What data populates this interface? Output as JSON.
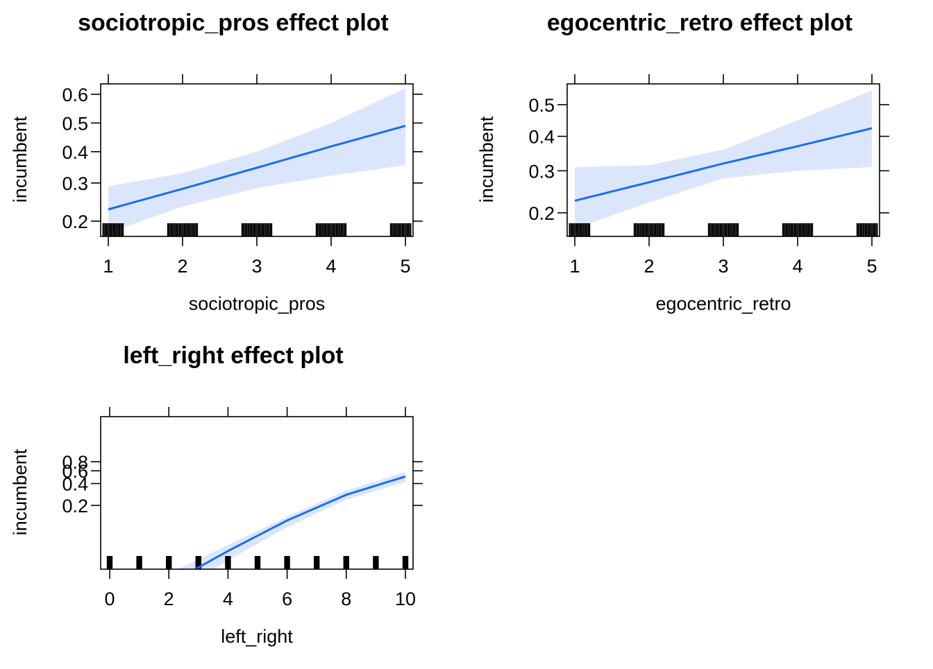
{
  "chart_data": [
    {
      "type": "line",
      "title": "sociotropic_pros effect plot",
      "xlabel": "sociotropic_pros",
      "ylabel": "incumbent",
      "x_ticks": [
        1,
        2,
        3,
        4,
        5
      ],
      "y_ticks": [
        0.2,
        0.3,
        0.4,
        0.5,
        0.6
      ],
      "y_tick_labels": [
        "0.2",
        "0.3",
        "0.4",
        "0.5",
        "0.6"
      ],
      "x": [
        1,
        2,
        3,
        4,
        5
      ],
      "fit": [
        0.228,
        0.283,
        0.347,
        0.418,
        0.49
      ],
      "lower": [
        0.175,
        0.235,
        0.285,
        0.322,
        0.355
      ],
      "upper": [
        0.29,
        0.33,
        0.4,
        0.5,
        0.62
      ],
      "rug_positions": [
        1,
        2,
        3,
        4,
        5
      ],
      "rug_spread": 0.2,
      "colors": {
        "line": "#1b6cf2",
        "band": "#dbe6fd",
        "rug": "#000000"
      }
    },
    {
      "type": "line",
      "title": "egocentric_retro effect plot",
      "xlabel": "egocentric_retro",
      "ylabel": "incumbent",
      "x_ticks": [
        1,
        2,
        3,
        4,
        5
      ],
      "y_ticks": [
        0.2,
        0.3,
        0.4,
        0.5
      ],
      "y_tick_labels": [
        "0.2",
        "0.3",
        "0.4",
        "0.5"
      ],
      "x": [
        1,
        2,
        3,
        4,
        5
      ],
      "fit": [
        0.226,
        0.27,
        0.32,
        0.37,
        0.425
      ],
      "lower": [
        0.17,
        0.222,
        0.28,
        0.3,
        0.31
      ],
      "upper": [
        0.31,
        0.315,
        0.36,
        0.45,
        0.545
      ],
      "rug_positions": [
        1,
        2,
        3,
        4,
        5
      ],
      "rug_spread": 0.2,
      "colors": {
        "line": "#1b6cf2",
        "band": "#dbe6fd",
        "rug": "#000000"
      }
    },
    {
      "type": "line",
      "title": "left_right effect plot",
      "xlabel": "left_right",
      "ylabel": "incumbent",
      "x_ticks": [
        0,
        2,
        4,
        6,
        8,
        10
      ],
      "y_ticks": [
        0.2,
        0.4,
        0.6,
        0.8
      ],
      "y_tick_labels": [
        "0.2",
        "0.4",
        "0.6",
        "0.8"
      ],
      "x": [
        0,
        2,
        4,
        6,
        8,
        10
      ],
      "fit": [
        0.0055,
        0.0165,
        0.047,
        0.124,
        0.28,
        0.5
      ],
      "lower": [
        0.003,
        0.011,
        0.035,
        0.1,
        0.24,
        0.42
      ],
      "upper": [
        0.0095,
        0.023,
        0.057,
        0.14,
        0.32,
        0.58
      ],
      "rug_positions": [
        0,
        1,
        2,
        3,
        4,
        5,
        6,
        7,
        8,
        9,
        10
      ],
      "rug_spread": 0.08,
      "colors": {
        "line": "#1b6cf2",
        "band": "#dbe6fd",
        "rug": "#000000"
      }
    }
  ]
}
